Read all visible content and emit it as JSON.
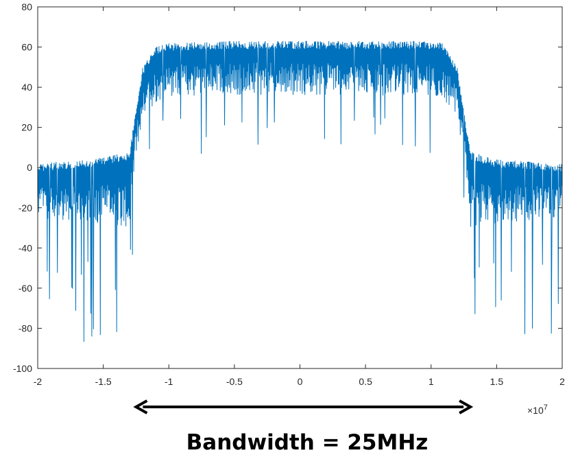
{
  "chart_data": {
    "type": "line",
    "title": "",
    "xlabel": "",
    "ylabel": "",
    "x_multiplier_label": "×10",
    "x_multiplier_exponent": "7",
    "xlim": [
      -2,
      2
    ],
    "ylim": [
      -100,
      80
    ],
    "xticks": [
      "-2",
      "-1.5",
      "-1",
      "-0.5",
      "0",
      "0.5",
      "1",
      "1.5",
      "2"
    ],
    "yticks": [
      "80",
      "60",
      "40",
      "20",
      "0",
      "-20",
      "-40",
      "-60",
      "-80",
      "-100"
    ],
    "grid": false,
    "series_color": "#0072BD",
    "series": [
      {
        "description_points": {
          "x": [
            -2.0,
            -1.5,
            -1.3,
            -1.25,
            -1.2,
            -1.1,
            -1.0,
            -0.5,
            0.0,
            0.5,
            1.0,
            1.1,
            1.2,
            1.25,
            1.3,
            1.5,
            2.0
          ],
          "upper": [
            2,
            5,
            8,
            30,
            50,
            60,
            62,
            63,
            63,
            63,
            63,
            62,
            50,
            30,
            8,
            4,
            2
          ],
          "lower": [
            -25,
            -28,
            -30,
            5,
            25,
            32,
            35,
            36,
            36,
            36,
            35,
            32,
            25,
            5,
            -30,
            -28,
            -25
          ],
          "deep_dips": [
            -75,
            -78,
            -60,
            -70,
            -45,
            10,
            10,
            12,
            15,
            -60,
            -85,
            -78
          ]
        }
      }
    ],
    "annotation": {
      "arrow_from": -1.25,
      "arrow_to": 1.3,
      "label": "Bandwidth = 25MHz"
    }
  }
}
